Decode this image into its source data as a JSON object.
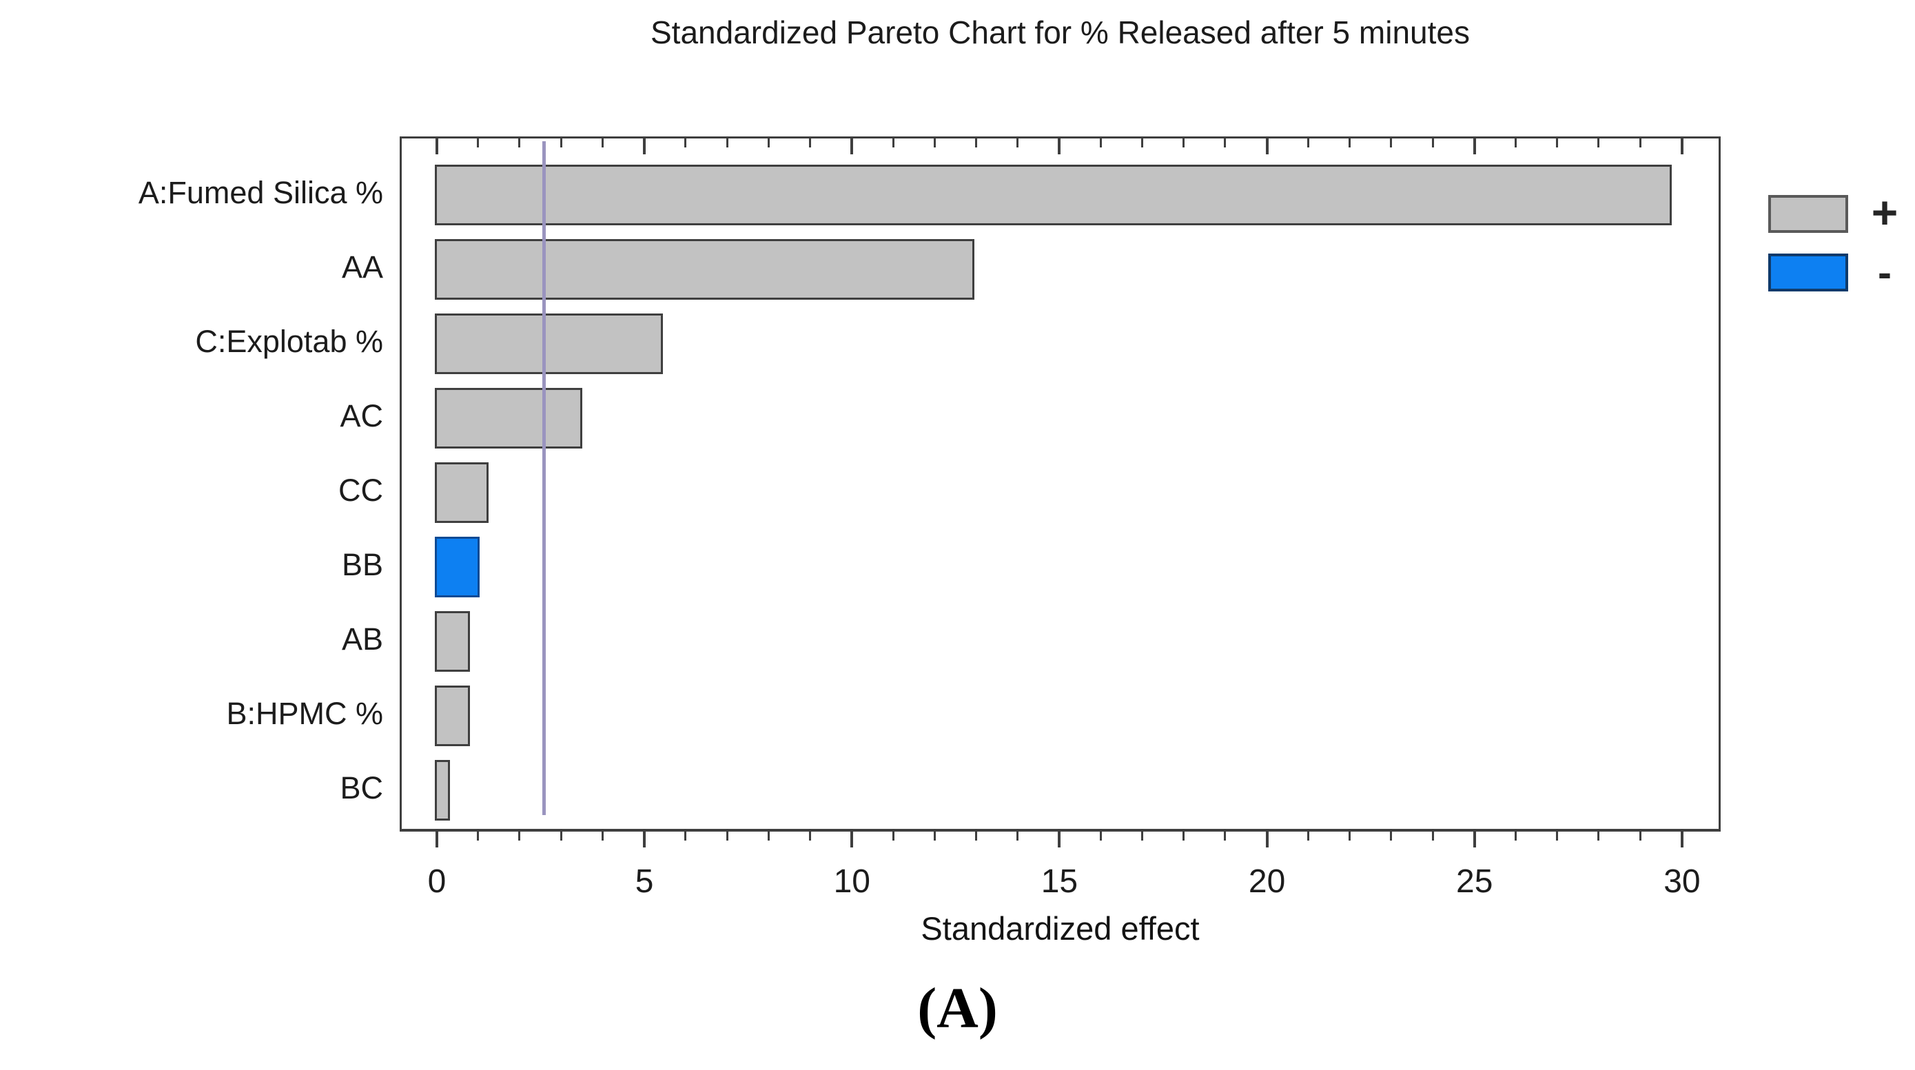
{
  "figure": {
    "caption": "(A)"
  },
  "chart_data": {
    "type": "bar",
    "orientation": "horizontal",
    "title": "Standardized Pareto Chart for % Released after 5 minutes",
    "xlabel": "Standardized effect",
    "categories": [
      "A:Fumed Silica %",
      "AA",
      "C:Explotab %",
      "AC",
      "CC",
      "BB",
      "AB",
      "B:HPMC %",
      "BC"
    ],
    "values": [
      29.7,
      12.9,
      5.4,
      3.45,
      1.2,
      0.98,
      0.75,
      0.74,
      0.27
    ],
    "signs": [
      "+",
      "+",
      "+",
      "+",
      "+",
      "-",
      "+",
      "+",
      "+"
    ],
    "xlim": [
      0,
      31
    ],
    "xticks": [
      0,
      5,
      10,
      15,
      20,
      25,
      30
    ],
    "minor_tick_step": 1,
    "reference_line_x": 2.57,
    "grid": false,
    "legend": {
      "position": "right",
      "items": [
        {
          "label": "+",
          "color": "#c2c2c2"
        },
        {
          "label": "-",
          "color": "#0d80f2"
        }
      ]
    },
    "colors": {
      "positive_fill": "#c2c2c2",
      "positive_border": "#3f3f3f",
      "negative_fill": "#0d80f2",
      "negative_border": "#0e4a94",
      "reference_line": "#9a94bf",
      "frame": "#3f3f3f"
    }
  }
}
